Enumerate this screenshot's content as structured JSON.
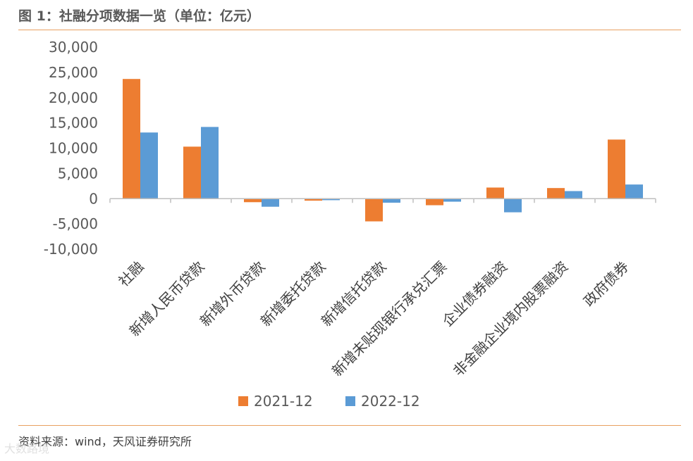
{
  "header": {
    "title": "图 1：社融分项数据一览（单位：亿元）"
  },
  "footer": {
    "source": "资料来源：wind，天风证券研究所",
    "watermark": "大数路境"
  },
  "colors": {
    "series_2021": "#ed7d31",
    "series_2022": "#5b9bd5",
    "axis": "#bfbfbf",
    "rule": "#e8a060"
  },
  "chart_data": {
    "type": "bar",
    "title": "",
    "xlabel": "",
    "ylabel": "",
    "ylim": [
      -10000,
      30000
    ],
    "yticks": [
      30000,
      25000,
      20000,
      15000,
      10000,
      5000,
      0,
      -5000,
      -10000
    ],
    "ytick_labels": [
      "30,000",
      "25,000",
      "20,000",
      "15,000",
      "10,000",
      "5,000",
      "0",
      "-5,000",
      "-10,000"
    ],
    "grid": false,
    "legend_position": "bottom",
    "categories": [
      "社融",
      "新增人民币贷款",
      "新增外币贷款",
      "新增委托贷款",
      "新增信托贷款",
      "新增未贴现银行承兑汇票",
      "企业债券融资",
      "非金融企业境内股票融资",
      "政府债券"
    ],
    "series": [
      {
        "name": "2021-12",
        "color": "#ed7d31",
        "values": [
          23700,
          10300,
          -700,
          -400,
          -4500,
          -1300,
          2200,
          2100,
          11700
        ]
      },
      {
        "name": "2022-12",
        "color": "#5b9bd5",
        "values": [
          13100,
          14200,
          -1600,
          -300,
          -800,
          -600,
          -2700,
          1500,
          2800
        ]
      }
    ]
  }
}
